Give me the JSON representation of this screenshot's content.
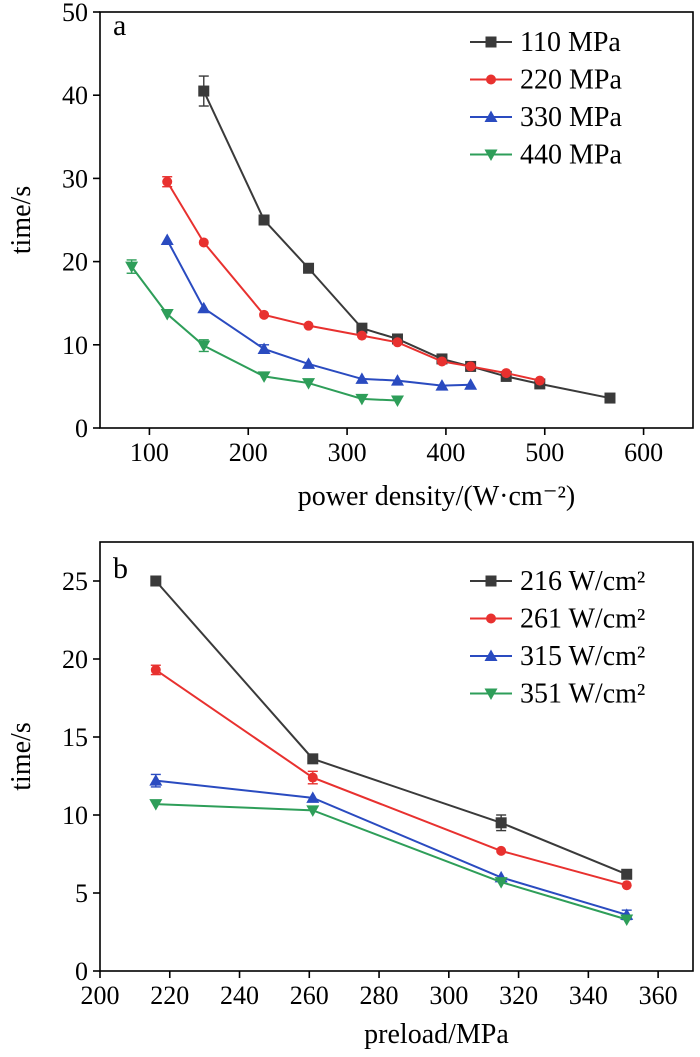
{
  "chart_data": [
    {
      "type": "line",
      "panel_label": "a",
      "xlabel": "power density/(W·cm⁻²)",
      "ylabel": "time/s",
      "xlim": [
        50,
        650
      ],
      "ylim": [
        0,
        50
      ],
      "xticks": [
        100,
        200,
        300,
        400,
        500,
        600
      ],
      "yticks": [
        0,
        10,
        20,
        30,
        40,
        50
      ],
      "legend_position": "top-right",
      "series": [
        {
          "name": "110 MPa",
          "color": "#3a3a3a",
          "marker": "square",
          "x": [
            155,
            216,
            261,
            315,
            351,
            396,
            425,
            461,
            495,
            566
          ],
          "y": [
            40.5,
            25.0,
            19.2,
            12.0,
            10.7,
            8.3,
            7.4,
            6.2,
            5.3,
            3.6
          ],
          "err": [
            1.8,
            0,
            0,
            0,
            0,
            0,
            0,
            0,
            0,
            0
          ]
        },
        {
          "name": "220 MPa",
          "color": "#e8312f",
          "marker": "circle",
          "x": [
            118,
            155,
            216,
            261,
            315,
            351,
            396,
            425,
            461,
            495
          ],
          "y": [
            29.6,
            22.3,
            13.6,
            12.3,
            11.1,
            10.3,
            8.0,
            7.4,
            6.6,
            5.7
          ],
          "err": [
            0.6,
            0,
            0,
            0,
            0,
            0,
            0,
            0,
            0,
            0
          ]
        },
        {
          "name": "330 MPa",
          "color": "#2a4bc0",
          "marker": "triangle-up",
          "x": [
            118,
            155,
            216,
            261,
            315,
            351,
            396,
            425
          ],
          "y": [
            22.6,
            14.4,
            9.5,
            7.7,
            5.9,
            5.7,
            5.1,
            5.2
          ],
          "err": [
            0,
            0,
            0.5,
            0,
            0,
            0,
            0,
            0
          ]
        },
        {
          "name": "440 MPa",
          "color": "#2e9e59",
          "marker": "triangle-down",
          "x": [
            82,
            118,
            155,
            216,
            261,
            315,
            351
          ],
          "y": [
            19.4,
            13.7,
            9.9,
            6.2,
            5.4,
            3.5,
            3.3
          ],
          "err": [
            0.8,
            0,
            0.7,
            0,
            0,
            0,
            0
          ]
        }
      ]
    },
    {
      "type": "line",
      "panel_label": "b",
      "xlabel": "preload/MPa",
      "ylabel": "time/s",
      "xlim": [
        200,
        370
      ],
      "ylim": [
        0,
        27.5
      ],
      "xticks": [
        200,
        220,
        240,
        260,
        280,
        300,
        320,
        340,
        360
      ],
      "yticks": [
        0,
        5,
        10,
        15,
        20,
        25
      ],
      "legend_position": "top-right",
      "series": [
        {
          "name": "216 W/cm²",
          "color": "#3a3a3a",
          "marker": "square",
          "x": [
            216,
            261,
            315,
            351
          ],
          "y": [
            25.0,
            13.6,
            9.5,
            6.2
          ],
          "err": [
            0,
            0,
            0.5,
            0
          ]
        },
        {
          "name": "261 W/cm²",
          "color": "#e8312f",
          "marker": "circle",
          "x": [
            216,
            261,
            315,
            351
          ],
          "y": [
            19.3,
            12.4,
            7.7,
            5.5
          ],
          "err": [
            0.3,
            0.4,
            0,
            0
          ]
        },
        {
          "name": "315 W/cm²",
          "color": "#2a4bc0",
          "marker": "triangle-up",
          "x": [
            216,
            261,
            315,
            351
          ],
          "y": [
            12.2,
            11.1,
            6.0,
            3.6
          ],
          "err": [
            0.4,
            0,
            0,
            0.3
          ]
        },
        {
          "name": "351 W/cm²",
          "color": "#2e9e59",
          "marker": "triangle-down",
          "x": [
            216,
            261,
            315,
            351
          ],
          "y": [
            10.7,
            10.3,
            5.7,
            3.3
          ],
          "err": [
            0,
            0,
            0,
            0
          ]
        }
      ]
    }
  ]
}
